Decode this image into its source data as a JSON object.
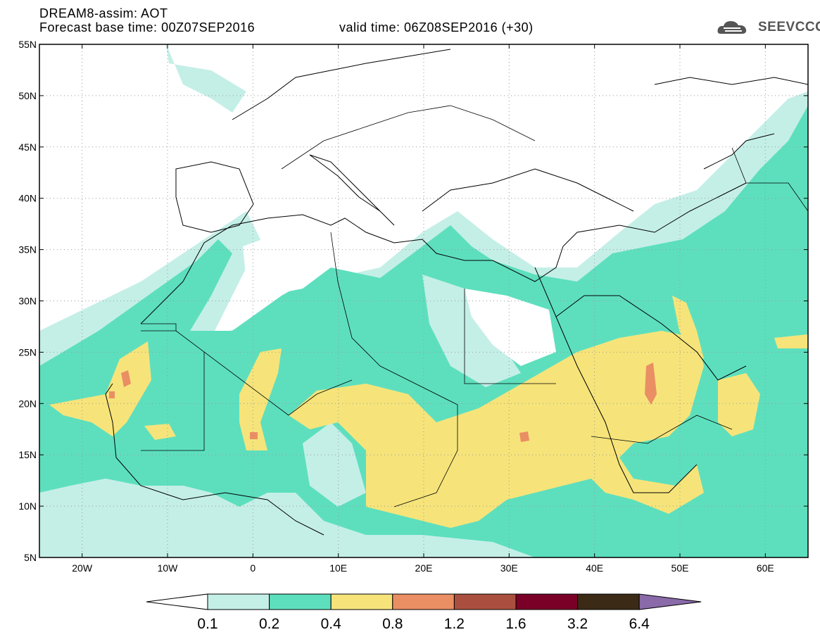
{
  "header": {
    "title": "DREAM8-assim: AOT",
    "forecast_base": "Forecast base time: 00Z07SEP2016",
    "valid_time": "valid time: 06Z08SEP2016 (+30)"
  },
  "logo": {
    "text": "SEEVCCC",
    "icon": "cloud-icon"
  },
  "map": {
    "lon_range": [
      -25,
      65
    ],
    "lat_range": [
      5,
      55
    ],
    "lat_labels": [
      "55N",
      "50N",
      "45N",
      "40N",
      "35N",
      "30N",
      "25N",
      "20N",
      "15N",
      "10N",
      "5N"
    ],
    "lon_labels": [
      "20W",
      "10W",
      "0",
      "10E",
      "20E",
      "30E",
      "40E",
      "50E",
      "60E"
    ],
    "grid": "dotted"
  },
  "colorbar": {
    "labels": [
      "0.1",
      "0.2",
      "0.4",
      "0.8",
      "1.2",
      "1.6",
      "3.2",
      "6.4"
    ],
    "colors": [
      "#ffffff",
      "#c4efe7",
      "#5ddfbe",
      "#f6e47a",
      "#ea8e64",
      "#aa4f3f",
      "#7a0028",
      "#3b2a16",
      "#8a6aa8"
    ]
  }
}
